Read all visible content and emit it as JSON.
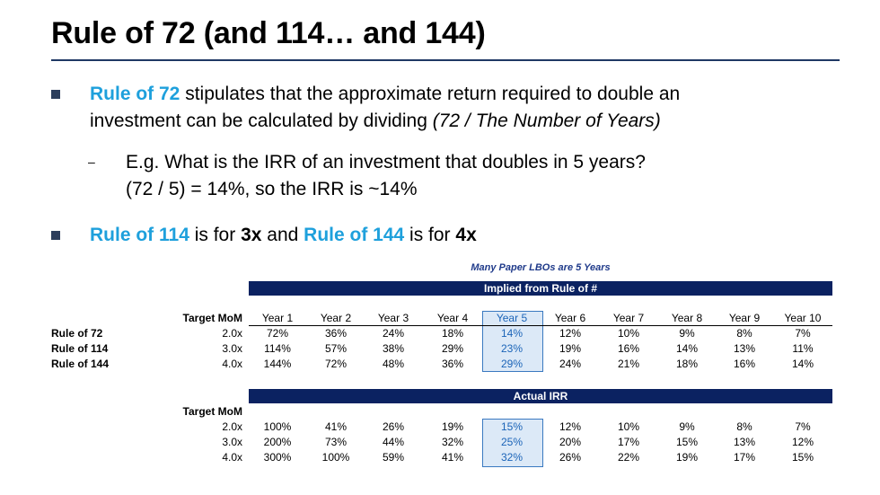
{
  "title": "Rule of 72 (and 114… and 144)",
  "bullet1": {
    "highlight": "Rule of 72",
    "text_a": " stipulates that the approximate return required to double an",
    "text_b": "investment can be calculated by dividing ",
    "italic": "(72 / The Number of Years)"
  },
  "sub1": {
    "dash": "–",
    "line1": "E.g. What is the IRR of an investment that doubles in 5 years?",
    "line2": "(72 / 5) = 14%, so the IRR is ~14%"
  },
  "bullet2": {
    "hl1": "Rule of 114",
    "t1": " is for ",
    "b1": "3x",
    "t2": " and ",
    "hl2": "Rule of 144",
    "t3": " is for ",
    "b2": "4x"
  },
  "table_note": "Many Paper LBOs are 5 Years",
  "implied": {
    "banner": "Implied from Rule of #",
    "mom_header": "Target MoM",
    "years": [
      "Year 1",
      "Year 2",
      "Year 3",
      "Year 4",
      "Year 5",
      "Year 6",
      "Year 7",
      "Year 8",
      "Year 9",
      "Year 10"
    ],
    "rows": [
      {
        "label": "Rule of 72",
        "mom": "2.0x",
        "values": [
          "72%",
          "36%",
          "24%",
          "18%",
          "14%",
          "12%",
          "10%",
          "9%",
          "8%",
          "7%"
        ]
      },
      {
        "label": "Rule of 114",
        "mom": "3.0x",
        "values": [
          "114%",
          "57%",
          "38%",
          "29%",
          "23%",
          "19%",
          "16%",
          "14%",
          "13%",
          "11%"
        ]
      },
      {
        "label": "Rule of 144",
        "mom": "4.0x",
        "values": [
          "144%",
          "72%",
          "48%",
          "36%",
          "29%",
          "24%",
          "21%",
          "18%",
          "16%",
          "14%"
        ]
      }
    ]
  },
  "actual": {
    "banner": "Actual IRR",
    "mom_header": "Target MoM",
    "rows": [
      {
        "mom": "2.0x",
        "values": [
          "100%",
          "41%",
          "26%",
          "19%",
          "15%",
          "12%",
          "10%",
          "9%",
          "8%",
          "7%"
        ]
      },
      {
        "mom": "3.0x",
        "values": [
          "200%",
          "73%",
          "44%",
          "32%",
          "25%",
          "20%",
          "17%",
          "15%",
          "13%",
          "12%"
        ]
      },
      {
        "mom": "4.0x",
        "values": [
          "300%",
          "100%",
          "59%",
          "41%",
          "32%",
          "26%",
          "22%",
          "19%",
          "17%",
          "15%"
        ]
      }
    ]
  },
  "colors": {
    "accent": "#1ea0dc",
    "navy": "#0b2261",
    "highlight_fill": "#dce9f7"
  }
}
